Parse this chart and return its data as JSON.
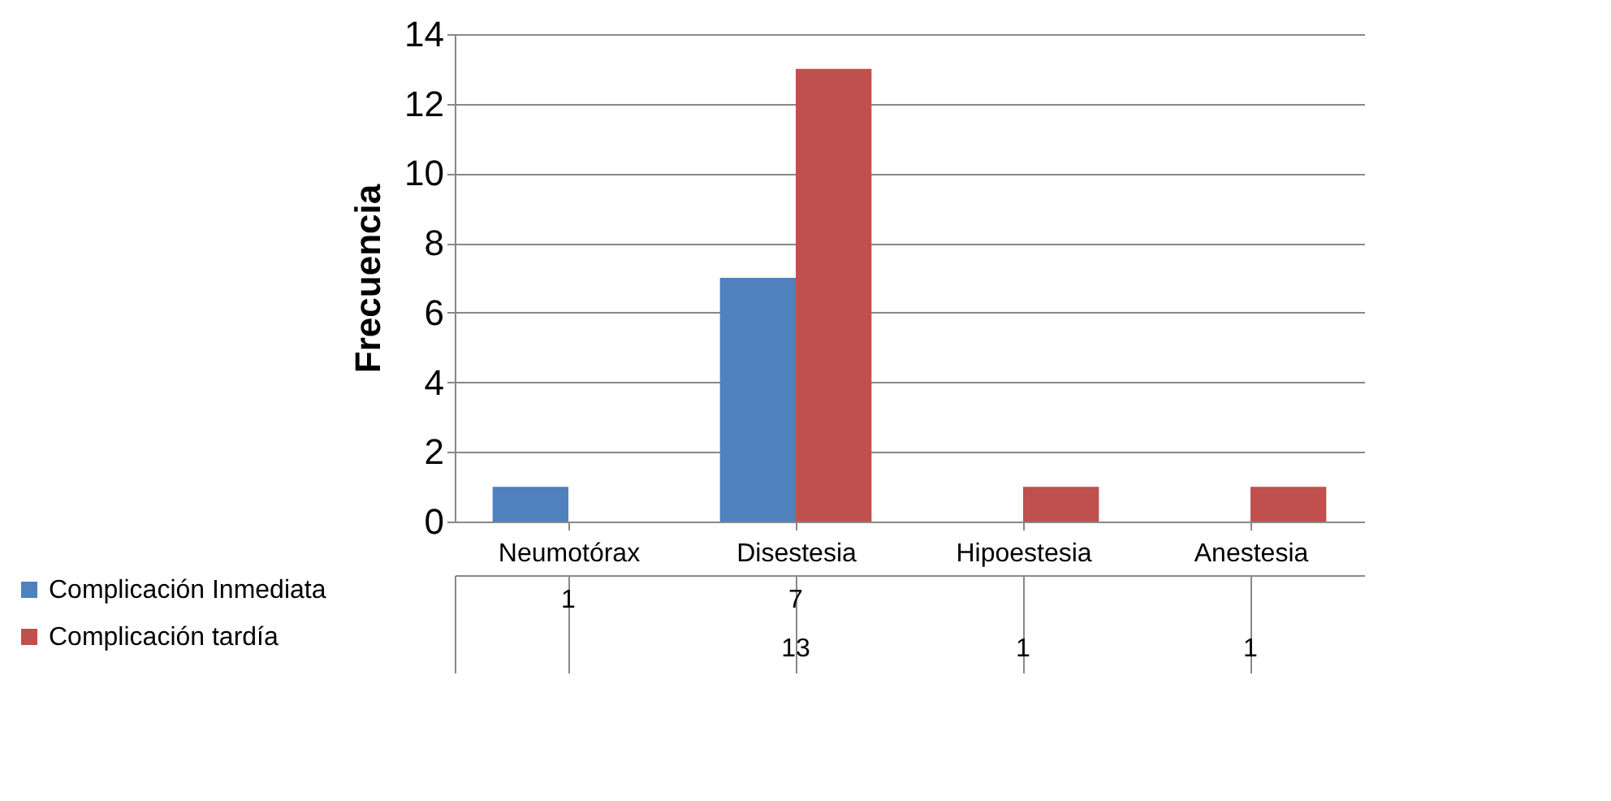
{
  "chart_data": {
    "type": "bar",
    "ylabel": "Frecuencia",
    "categories": [
      "Neumotórax",
      "Disestesia",
      "Hipoestesia",
      "Anestesia"
    ],
    "series": [
      {
        "name": "Complicación Inmediata",
        "color": "#4f81bd",
        "values": [
          1,
          7,
          null,
          null
        ]
      },
      {
        "name": "Complicación tardía",
        "color": "#c0504d",
        "values": [
          null,
          13,
          1,
          1
        ]
      }
    ],
    "ylim": [
      0,
      14
    ],
    "yticks": [
      0,
      2,
      4,
      6,
      8,
      10,
      12,
      14
    ],
    "grid": "y",
    "legend": "bottom left",
    "data_labels": true
  }
}
